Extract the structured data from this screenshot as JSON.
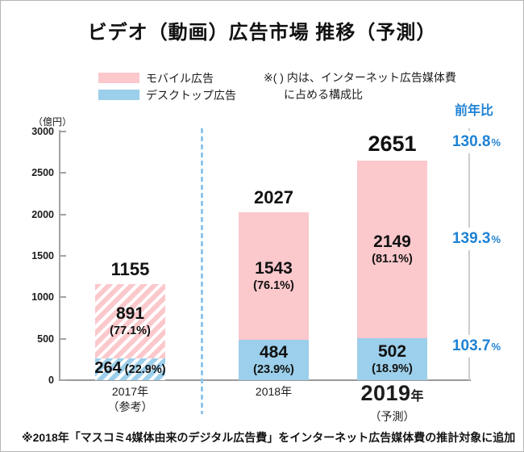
{
  "title": "ビデオ（動画）広告市場 推移（予測）",
  "legend": {
    "mobile": {
      "label": "モバイル広告"
    },
    "desktop": {
      "label": "デスクトップ広告"
    }
  },
  "note": {
    "line1": "※( ) 内は、インターネット広告媒体費",
    "line2": "に占める構成比"
  },
  "yoy_header": "前年比",
  "y_axis": {
    "unit": "（億円）",
    "ticks": [
      "3000",
      "2500",
      "2000",
      "1500",
      "1000",
      "500",
      "0"
    ]
  },
  "footnote": "※2018年「マスコミ4媒体由来のデジタル広告費」をインターネット広告媒体費の推計対象に追加",
  "colors": {
    "mobile_pink": "#FBC8CC",
    "desktop_blue": "#9CCFEB",
    "accent_blue": "#1E82D4"
  },
  "chart_data": {
    "type": "bar",
    "stacked": true,
    "unit": "億円",
    "ylim": [
      0,
      3000
    ],
    "grid": false,
    "legend_position": "top-left",
    "categories": [
      {
        "label": "2017年",
        "sub": "（参考）",
        "emphasis": false
      },
      {
        "label": "2018年",
        "sub": "",
        "emphasis": false
      },
      {
        "label": "2019年",
        "sub": "（予測）",
        "emphasis": true
      }
    ],
    "series": [
      {
        "name": "モバイル広告",
        "values": [
          891,
          1543,
          2149
        ],
        "shares": [
          "(77.1%)",
          "(76.1%)",
          "(81.1%)"
        ],
        "color": "#FBC8CC"
      },
      {
        "name": "デスクトップ広告",
        "values": [
          264,
          484,
          502
        ],
        "shares": [
          "(22.9%)",
          "(23.9%)",
          "(18.9%)"
        ],
        "color": "#9CCFEB"
      }
    ],
    "totals": [
      1155,
      2027,
      2651
    ],
    "yoy": [
      {
        "value": "130.8",
        "unit": "%"
      },
      {
        "value": "139.3",
        "unit": "%"
      },
      {
        "value": "103.7",
        "unit": "%"
      }
    ],
    "hatched_category_index": 0,
    "desktop_one_line_index": 0
  }
}
